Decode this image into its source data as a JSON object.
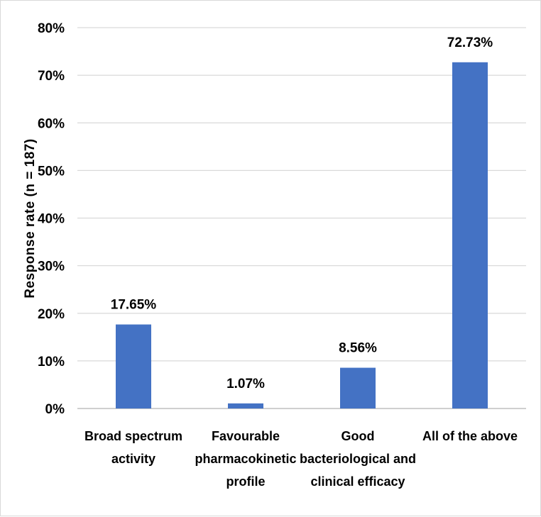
{
  "chart_data": {
    "type": "bar",
    "title": "",
    "xlabel": "",
    "ylabel": "Response rate  (n = 187)",
    "categories": [
      [
        "Broad spectrum",
        "activity"
      ],
      [
        "Favourable",
        "pharmacokinetic",
        "profile"
      ],
      [
        "Good",
        "bacteriological and",
        "clinical efficacy"
      ],
      [
        "All of the above"
      ]
    ],
    "values": [
      17.65,
      1.07,
      8.56,
      72.73
    ],
    "data_labels": [
      "17.65%",
      "1.07%",
      "8.56%",
      "72.73%"
    ],
    "ylim": [
      0,
      80
    ],
    "yticks": [
      0,
      10,
      20,
      30,
      40,
      50,
      60,
      70,
      80
    ],
    "ytick_labels": [
      "0%",
      "10%",
      "20%",
      "30%",
      "40%",
      "50%",
      "60%",
      "70%",
      "80%"
    ],
    "grid": true,
    "legend": "none",
    "colors": {
      "bar": "#4472C4",
      "grid": "#d9d9d9",
      "axis": "#bfbfbf"
    }
  }
}
